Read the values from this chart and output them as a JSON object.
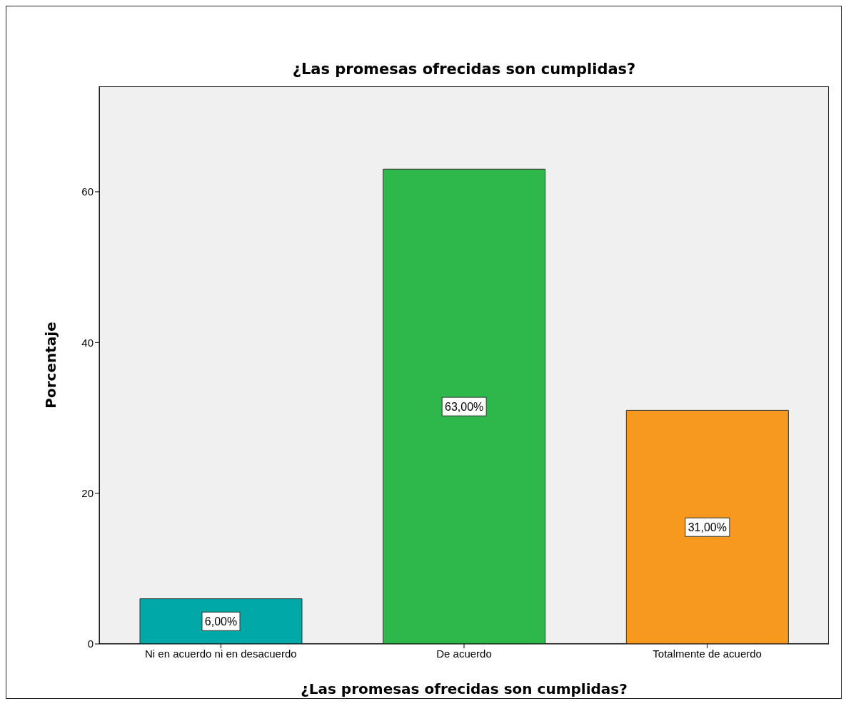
{
  "chart_data": {
    "type": "bar",
    "title": "¿Las promesas ofrecidas son cumplidas?",
    "xlabel": "¿Las promesas ofrecidas son cumplidas?",
    "ylabel": "Porcentaje",
    "categories": [
      "Ni en acuerdo ni en desacuerdo",
      "De acuerdo",
      "Totalmente de acuerdo"
    ],
    "values": [
      6,
      63,
      31
    ],
    "colors": [
      "#00a8a8",
      "#2eb84b",
      "#f7991f"
    ],
    "value_labels": [
      "6,00%",
      "63,00%",
      "31,00%"
    ],
    "ylim": [
      0,
      74
    ],
    "yticks": [
      0,
      20,
      40,
      60
    ],
    "grid": false
  }
}
